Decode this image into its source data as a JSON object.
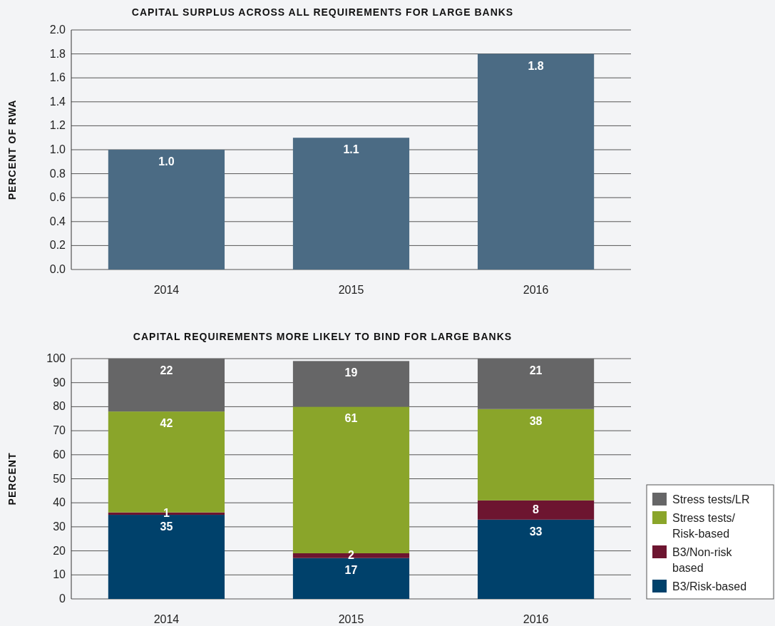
{
  "chart_data": [
    {
      "type": "bar",
      "title": "CAPITAL SURPLUS ACROSS ALL REQUIREMENTS FOR LARGE BANKS",
      "ylabel": "PERCENT OF RWA",
      "categories": [
        "2014",
        "2015",
        "2016"
      ],
      "values": [
        1.0,
        1.1,
        1.8
      ],
      "value_labels": [
        "1.0",
        "1.1",
        "1.8"
      ],
      "color": "#4b6b84",
      "ylim": [
        0,
        2
      ],
      "yticks": [
        {
          "value": 0,
          "label": "0.0"
        },
        {
          "value": 0.2,
          "label": "0.2"
        },
        {
          "value": 0.4,
          "label": "0.4"
        },
        {
          "value": 0.6,
          "label": "0.6"
        },
        {
          "value": 0.8,
          "label": "0.8"
        },
        {
          "value": 1,
          "label": "1.0"
        },
        {
          "value": 1.2,
          "label": "1.2"
        },
        {
          "value": 1.4,
          "label": "1.4"
        },
        {
          "value": 1.6,
          "label": "1.6"
        },
        {
          "value": 1.8,
          "label": "1.8"
        },
        {
          "value": 2,
          "label": "2.0"
        }
      ],
      "grid": "y"
    },
    {
      "type": "bar",
      "title": "CAPITAL REQUIREMENTS MORE LIKELY TO BIND FOR LARGE BANKS",
      "ylabel": "PERCENT",
      "categories": [
        "2014",
        "2015",
        "2016"
      ],
      "stacked": true,
      "series": [
        {
          "name": "B3/Risk-based",
          "color": "#00416b",
          "values": [
            35,
            17,
            33
          ]
        },
        {
          "name": "B3/Non-risk based",
          "color": "#6d1530",
          "values": [
            1,
            2,
            8
          ]
        },
        {
          "name": "Stress tests/Risk-based",
          "color": "#8aa52a",
          "values": [
            42,
            61,
            38
          ]
        },
        {
          "name": "Stress tests/LR",
          "color": "#666667",
          "values": [
            22,
            19,
            21
          ]
        }
      ],
      "data_labels": true,
      "ylim": [
        0,
        100
      ],
      "yticks": [
        0,
        10,
        20,
        30,
        40,
        50,
        60,
        70,
        80,
        90,
        100
      ],
      "grid": "y",
      "legend": "bottom right"
    }
  ]
}
